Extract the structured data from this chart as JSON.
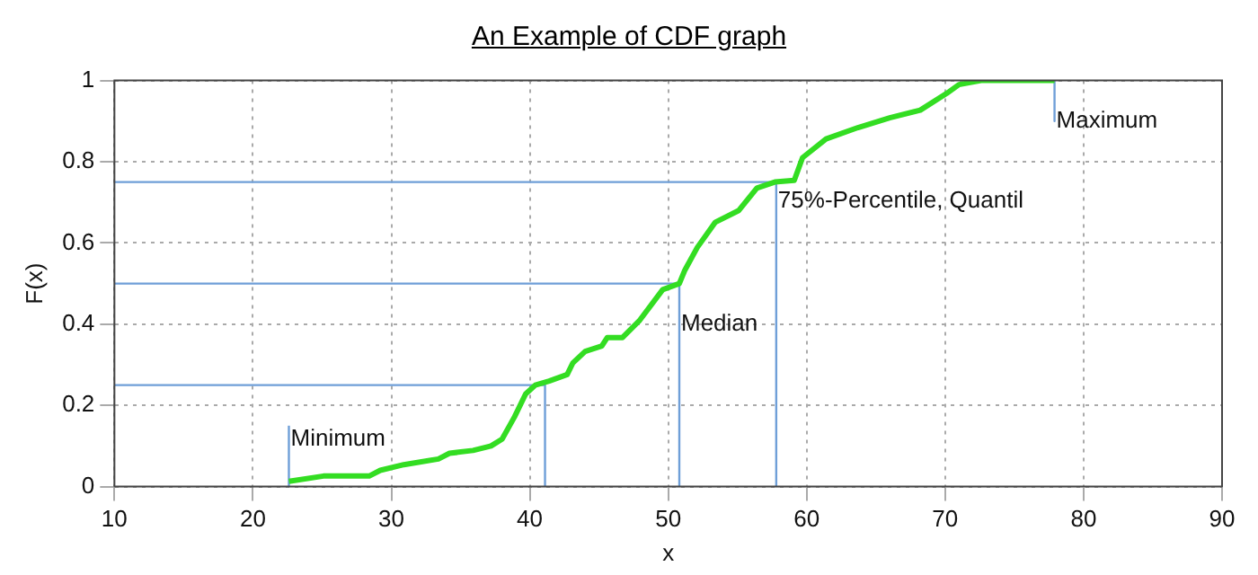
{
  "chart_data": {
    "type": "line",
    "title": "An Example of CDF graph",
    "xlabel": "x",
    "ylabel": "F(x)",
    "xlim": [
      10,
      90
    ],
    "xticks": [
      10,
      20,
      30,
      40,
      50,
      60,
      70,
      80,
      90
    ],
    "ylim": [
      0,
      1
    ],
    "yticks": [
      0,
      0.2,
      0.4,
      0.6,
      0.8,
      1
    ],
    "grid": true,
    "legend": false,
    "marker": "none",
    "line_style": "solid",
    "series": [
      {
        "color": "#33dd22",
        "x": [
          22.6,
          25.1,
          28.4,
          29.2,
          30.9,
          33.4,
          34.2,
          35.9,
          37.2,
          38,
          38.9,
          39.7,
          40.4,
          41.4,
          42.7,
          43.1,
          44,
          45.2,
          45.6,
          46.7,
          47.9,
          49.6,
          50.8,
          51.2,
          52.1,
          53.4,
          55.1,
          56.4,
          57.7,
          59.1,
          59.7,
          61.4,
          63.7,
          66,
          68.2,
          70.1,
          71,
          72.6,
          77.9
        ],
        "values": [
          0.013,
          0.026,
          0.026,
          0.04,
          0.054,
          0.068,
          0.082,
          0.089,
          0.1,
          0.117,
          0.172,
          0.228,
          0.25,
          0.26,
          0.276,
          0.304,
          0.333,
          0.346,
          0.367,
          0.367,
          0.408,
          0.485,
          0.5,
          0.533,
          0.589,
          0.651,
          0.68,
          0.735,
          0.75,
          0.754,
          0.81,
          0.856,
          0.884,
          0.908,
          0.927,
          0.968,
          0.99,
          1,
          1
        ]
      },
      {
        "color": "#6f9fd8",
        "x": [
          10,
          41.1,
          41.1
        ],
        "values": [
          0.25,
          0.25,
          0
        ]
      },
      {
        "color": "#6f9fd8",
        "x": [
          10,
          50.8,
          50.8
        ],
        "values": [
          0.5,
          0.5,
          0
        ]
      },
      {
        "color": "#6f9fd8",
        "x": [
          10,
          57.8,
          57.8
        ],
        "values": [
          0.75,
          0.75,
          0
        ]
      },
      {
        "color": "#6f9fd8",
        "x": [
          22.6,
          22.6
        ],
        "values": [
          0,
          0.15
        ]
      },
      {
        "color": "#6f9fd8",
        "x": [
          77.9,
          77.9
        ],
        "values": [
          1,
          0.9
        ]
      }
    ],
    "annotations": [
      {
        "text": "Minimum",
        "x": 22.6,
        "y": 0.117
      },
      {
        "text": "Median",
        "x": 50.8,
        "y": 0.4
      },
      {
        "text": "75%-Percentile, Quantil",
        "x": 57.8,
        "y": 0.704
      },
      {
        "text": "Maximum",
        "x": 77.9,
        "y": 0.9
      }
    ]
  }
}
